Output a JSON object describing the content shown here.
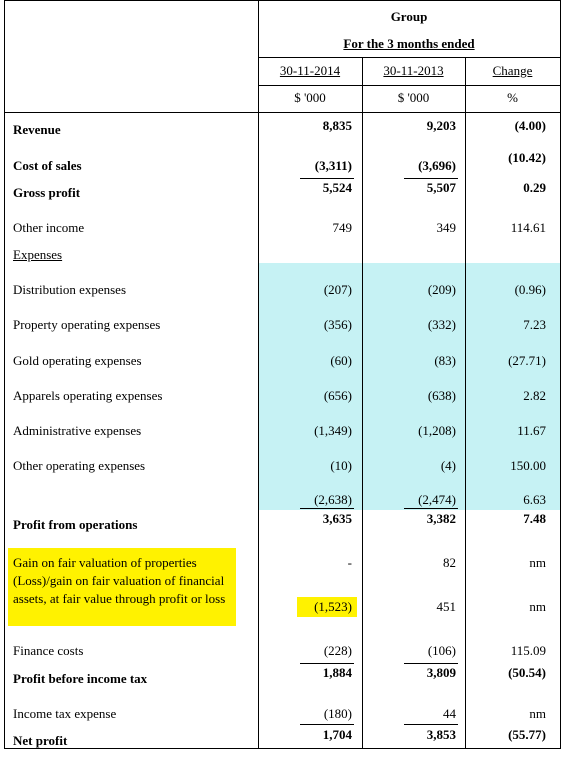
{
  "header": {
    "group": "Group",
    "period": "For the 3 months ended",
    "columns": [
      "30-11-2014",
      "30-11-2013",
      "Change"
    ],
    "units": [
      "$ '000",
      "$ '000",
      "%"
    ]
  },
  "rows": [
    {
      "label": "Revenue",
      "values": [
        "8,835",
        "9,203",
        "(4.00)"
      ],
      "bold": true
    },
    {
      "label": "Cost of sales",
      "values": [
        "(3,311)",
        "(3,696)",
        "(10.42)"
      ],
      "bold": true
    },
    {
      "label": "Gross profit",
      "values": [
        "5,524",
        "5,507",
        "0.29"
      ],
      "bold": true
    },
    {
      "label": "Other  income",
      "values": [
        "749",
        "349",
        "114.61"
      ]
    },
    {
      "label": "Expenses",
      "values": [],
      "underline": true
    },
    {
      "label": "Distribution expenses",
      "values": [
        "(207)",
        "(209)",
        "(0.96)"
      ]
    },
    {
      "label": "Property operating expenses",
      "values": [
        "(356)",
        "(332)",
        "7.23"
      ]
    },
    {
      "label": "Gold operating expenses",
      "values": [
        "(60)",
        "(83)",
        "(27.71)"
      ]
    },
    {
      "label": "Apparels operating expenses",
      "values": [
        "(656)",
        "(638)",
        "2.82"
      ]
    },
    {
      "label": "Administrative expenses",
      "values": [
        "(1,349)",
        "(1,208)",
        "11.67"
      ]
    },
    {
      "label": "Other operating expenses",
      "values": [
        "(10)",
        "(4)",
        "150.00"
      ]
    },
    {
      "values": [
        "(2,638)",
        "(2,474)",
        "6.63"
      ]
    },
    {
      "label": "Profit from operations",
      "values": [
        "3,635",
        "3,382",
        "7.48"
      ],
      "bold": true
    },
    {
      "label": "Gain on fair valuation of properties",
      "values": [
        "-",
        "82",
        "nm"
      ]
    },
    {
      "label": "(Loss)/gain on fair valuation of financial assets, at fair value through profit or loss",
      "values": [
        "(1,523)",
        "451",
        "nm"
      ]
    },
    {
      "label": "Finance costs",
      "values": [
        "(228)",
        "(106)",
        "115.09"
      ]
    },
    {
      "label": "Profit before income tax",
      "values": [
        "1,884",
        "3,809",
        "(50.54)"
      ],
      "bold": true
    },
    {
      "label": "Income tax expense",
      "values": [
        "(180)",
        "44",
        "nm"
      ]
    },
    {
      "label": "Net profit",
      "values": [
        "1,704",
        "3,853",
        "(55.77)"
      ],
      "bold": true
    }
  ]
}
